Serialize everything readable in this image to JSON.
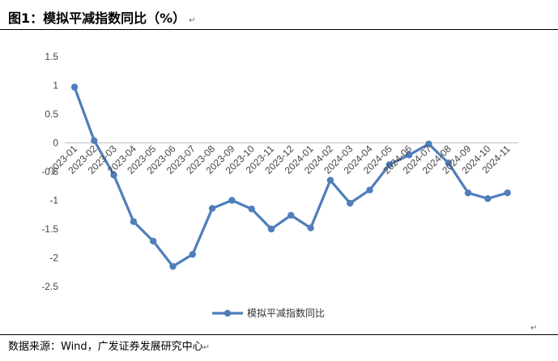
{
  "title": "图1：模拟平减指数同比（%）",
  "return_mark": "↵",
  "source": "数据来源：Wind，广发证券发展研究中心",
  "colors": {
    "series": "#4f7eba",
    "axis": "#bfbfbf"
  },
  "chart_data": {
    "type": "line",
    "title": "",
    "xlabel": "",
    "ylabel": "",
    "ylim": [
      -2.5,
      1.5
    ],
    "yticks": [
      1.5,
      1,
      0.5,
      0,
      -0.5,
      -1,
      -1.5,
      -2,
      -2.5
    ],
    "ytick_labels": [
      "1.5",
      "1",
      "0.5",
      "0",
      "-0.5",
      "-1",
      "-1.5",
      "-2",
      "-2.5"
    ],
    "grid": false,
    "legend": "bottom",
    "categories": [
      "2023-01",
      "2023-02",
      "2023-03",
      "2023-04",
      "2023-05",
      "2023-06",
      "2023-07",
      "2023-08",
      "2023-09",
      "2023-10",
      "2023-11",
      "2023-12",
      "2024-01",
      "2024-02",
      "2024-03",
      "2024-04",
      "2024-05",
      "2024-06",
      "2024-07",
      "2024-08",
      "2024-09",
      "2024-10",
      "2024-11"
    ],
    "series": [
      {
        "name": "模拟平减指数同比",
        "values": [
          0.97,
          0.04,
          -0.56,
          -1.37,
          -1.71,
          -2.15,
          -1.94,
          -1.14,
          -1.0,
          -1.15,
          -1.5,
          -1.26,
          -1.48,
          -0.65,
          -1.05,
          -0.82,
          -0.38,
          -0.21,
          -0.02,
          -0.35,
          -0.87,
          -0.97,
          -0.87
        ]
      }
    ]
  }
}
